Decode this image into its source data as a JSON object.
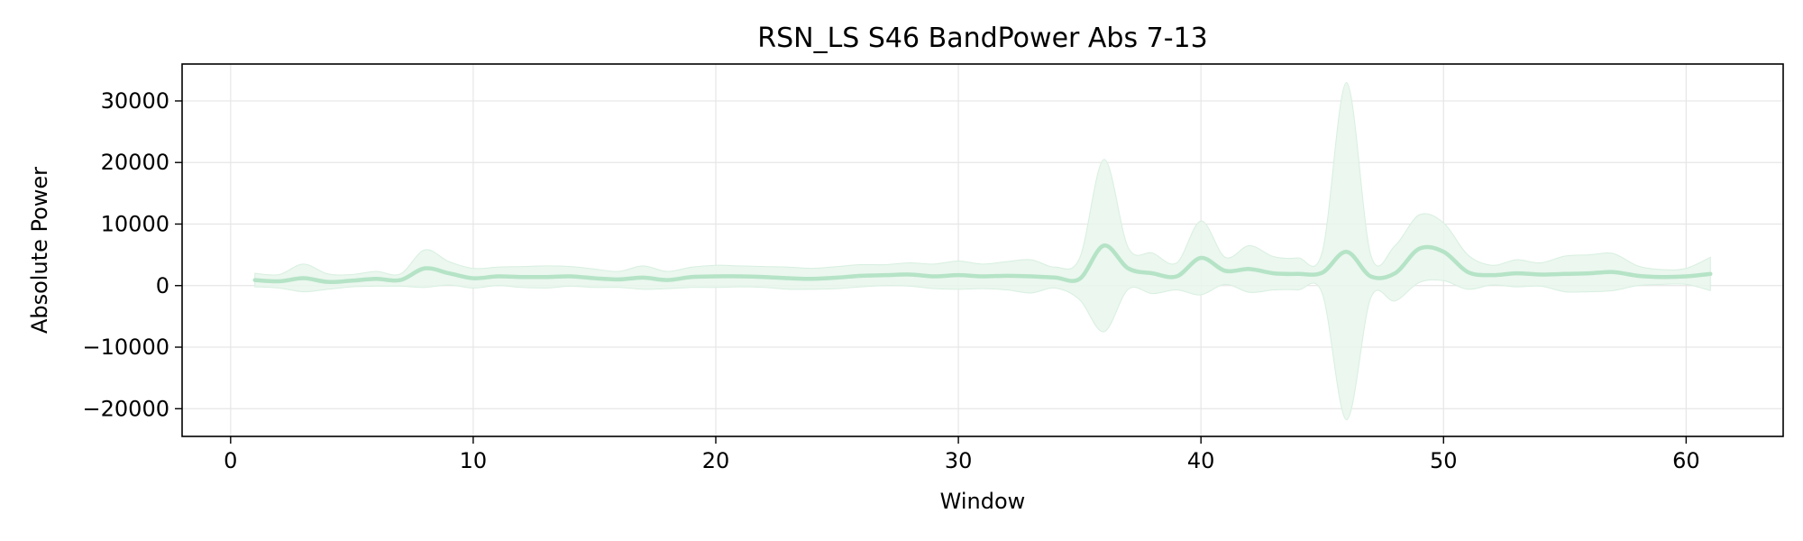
{
  "chart_data": {
    "type": "line",
    "title": "RSN_LS S46 BandPower Abs 7-13",
    "xlabel": "Window",
    "ylabel": "Absolute Power",
    "xlim": [
      -2,
      64
    ],
    "ylim": [
      -24500,
      36000
    ],
    "xticks": [
      0,
      10,
      20,
      30,
      40,
      50,
      60
    ],
    "yticks": [
      -20000,
      -10000,
      0,
      10000,
      20000,
      30000
    ],
    "ytick_labels": [
      "−20000",
      "−10000",
      "0",
      "10000",
      "20000",
      "30000"
    ],
    "grid": true,
    "legend": "none",
    "colors": {
      "line": "#b5e3c6",
      "band": "#e8f6ec",
      "grid": "#e6e6e6",
      "axes": "#000000"
    },
    "series": [
      {
        "x": [
          1,
          2,
          3,
          4,
          5,
          6,
          7,
          8,
          9,
          10,
          11,
          12,
          13,
          14,
          15,
          16,
          17,
          18,
          19,
          20,
          21,
          22,
          23,
          24,
          25,
          26,
          27,
          28,
          29,
          30,
          31,
          32,
          33,
          34,
          35,
          36,
          37,
          38,
          39,
          40,
          41,
          42,
          43,
          44,
          45,
          46,
          47,
          48,
          49,
          50,
          51,
          52,
          53,
          54,
          55,
          56,
          57,
          58,
          59,
          60,
          61
        ],
        "values": [
          900,
          700,
          1200,
          600,
          800,
          1100,
          900,
          2800,
          2000,
          1200,
          1500,
          1400,
          1400,
          1500,
          1200,
          1000,
          1300,
          900,
          1400,
          1500,
          1500,
          1400,
          1200,
          1100,
          1300,
          1600,
          1700,
          1800,
          1500,
          1700,
          1500,
          1600,
          1500,
          1300,
          1100,
          6500,
          2800,
          2000,
          1500,
          4500,
          2400,
          2700,
          2000,
          1900,
          2100,
          5500,
          1500,
          2000,
          6000,
          5500,
          2200,
          1700,
          2000,
          1800,
          1900,
          2000,
          2200,
          1600,
          1400,
          1500,
          1900
        ],
        "upper": [
          2000,
          1800,
          3500,
          1900,
          1800,
          2300,
          1900,
          5800,
          3900,
          2800,
          3000,
          3100,
          3200,
          3100,
          2700,
          2300,
          3200,
          2300,
          3000,
          3300,
          3200,
          3100,
          3000,
          2800,
          3100,
          3400,
          3400,
          3700,
          3500,
          4000,
          3500,
          3900,
          4200,
          3000,
          4500,
          20500,
          6200,
          5300,
          3700,
          10500,
          4600,
          6500,
          4700,
          4500,
          5500,
          33000,
          5000,
          6500,
          11500,
          10200,
          5000,
          3300,
          4200,
          3700,
          4800,
          5000,
          5200,
          3200,
          2600,
          2800,
          4600
        ],
        "lower": [
          -200,
          -400,
          -1000,
          -600,
          -200,
          -100,
          -100,
          -300,
          100,
          -400,
          0,
          -300,
          -400,
          -100,
          -300,
          -300,
          -600,
          -500,
          -300,
          -300,
          -200,
          -300,
          -600,
          -600,
          -500,
          -200,
          0,
          -100,
          -500,
          -600,
          -500,
          -700,
          -1200,
          -400,
          -2300,
          -7500,
          -600,
          -1300,
          -700,
          -1500,
          200,
          -1100,
          -700,
          -700,
          -1300,
          -21800,
          -2000,
          -2500,
          500,
          800,
          -600,
          100,
          -200,
          -100,
          -1000,
          -1000,
          -800,
          0,
          200,
          200,
          -800
        ]
      }
    ]
  }
}
